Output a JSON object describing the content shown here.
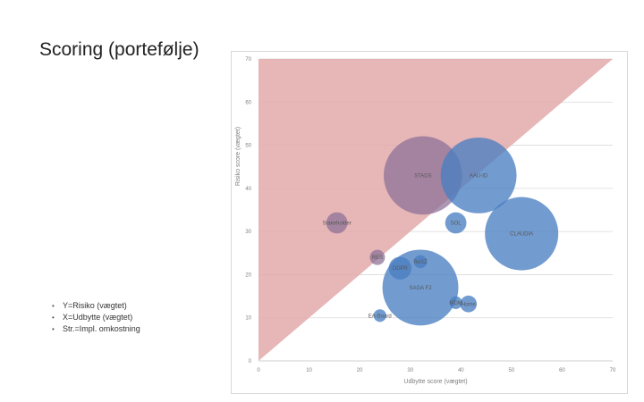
{
  "slide": {
    "title": "Scoring (portefølje)",
    "legend_notes": [
      "Y=Risiko (vægtet)",
      "X=Udbytte (vægtet)",
      "Str.=Impl. omkostning"
    ]
  },
  "chart_data": {
    "type": "bubble",
    "xlabel": "Udbytte score (vægtet)",
    "ylabel": "Risiko score (vægtet)",
    "xlim": [
      0,
      70
    ],
    "ylim": [
      0,
      70
    ],
    "xticks": [
      0,
      10,
      20,
      30,
      40,
      50,
      60,
      70
    ],
    "yticks": [
      0,
      10,
      20,
      30,
      40,
      50,
      60,
      70
    ],
    "grid": "horizontal",
    "risk_area": {
      "from": [
        0,
        0
      ],
      "to": [
        70,
        70
      ],
      "fill": "#e3a9a9"
    },
    "bubble_color": "#4a7fc1",
    "points": [
      {
        "label": "STADS",
        "x": 32.5,
        "y": 43,
        "size": 15.5
      },
      {
        "label": "AAU-ID",
        "x": 43.5,
        "y": 43,
        "size": 15
      },
      {
        "label": "Stakeholder",
        "x": 15.5,
        "y": 32,
        "size": 4.2
      },
      {
        "label": "SOL",
        "x": 39,
        "y": 32,
        "size": 4.2
      },
      {
        "label": "CLAUDIA",
        "x": 52,
        "y": 29.5,
        "size": 14.5
      },
      {
        "label": "RES",
        "x": 23.5,
        "y": 24,
        "size": 3
      },
      {
        "label": "DDPR",
        "x": 28,
        "y": 21.5,
        "size": 4.5
      },
      {
        "label": "ReSZ",
        "x": 32,
        "y": 23,
        "size": 2.6
      },
      {
        "label": "SAGA F2",
        "x": 32,
        "y": 17,
        "size": 15
      },
      {
        "label": "MDM",
        "x": 39,
        "y": 13.5,
        "size": 2.5
      },
      {
        "label": "Home",
        "x": 41.5,
        "y": 13.2,
        "size": 3.3
      },
      {
        "label": "EA-Board",
        "x": 24,
        "y": 10.5,
        "size": 2.5
      }
    ]
  }
}
